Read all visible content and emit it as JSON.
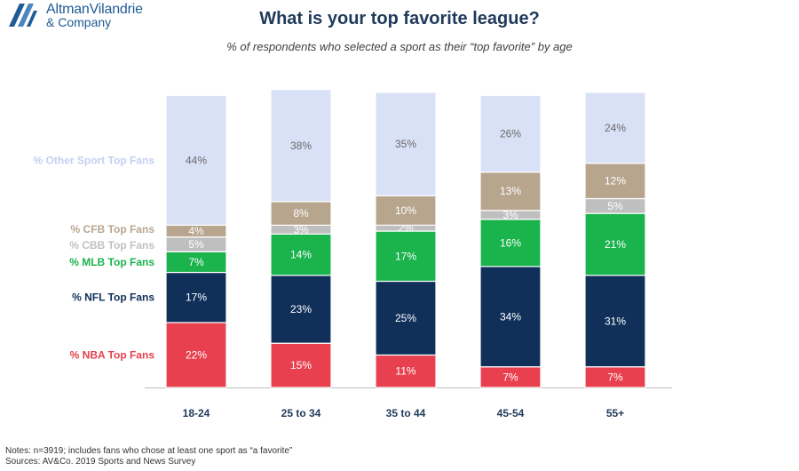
{
  "logo": {
    "line1": "AltmanVilandrie",
    "line2": "& Company"
  },
  "chart_data": {
    "type": "bar",
    "stacked": true,
    "title": "What is your top favorite league?",
    "subtitle": "% of respondents who selected a sport as their “top favorite” by age",
    "categories": [
      "18-24",
      "25 to 34",
      "35 to 44",
      "45-54",
      "55+"
    ],
    "series": [
      {
        "name": "% NBA Top Fans",
        "color": "#e8404f",
        "text_color": "#ffffff",
        "label_color": "#e8404f",
        "values": [
          22,
          15,
          11,
          7,
          7
        ]
      },
      {
        "name": "% NFL Top Fans",
        "color": "#10305a",
        "text_color": "#ffffff",
        "label_color": "#10305a",
        "values": [
          17,
          23,
          25,
          34,
          31
        ]
      },
      {
        "name": "% MLB Top Fans",
        "color": "#1ab34c",
        "text_color": "#ffffff",
        "label_color": "#1ab34c",
        "values": [
          7,
          14,
          17,
          16,
          21
        ]
      },
      {
        "name": "% CBB Top Fans",
        "color": "#bfbfbf",
        "text_color": "#ffffff",
        "label_color": "#c0c0c0",
        "values": [
          5,
          3,
          2,
          3,
          5
        ]
      },
      {
        "name": "% CFB Top Fans",
        "color": "#b8a58e",
        "text_color": "#ffffff",
        "label_color": "#b8a58e",
        "values": [
          4,
          8,
          10,
          13,
          12
        ]
      },
      {
        "name": "% Other Sport Top Fans",
        "color": "#d9e1f7",
        "text_color": "#6a6a6a",
        "label_color": "#c5cff0",
        "values": [
          44,
          38,
          35,
          26,
          24
        ]
      }
    ],
    "value_suffix": "%",
    "ylim": [
      0,
      100
    ],
    "grid": false,
    "legend": "left"
  },
  "notes": {
    "line1": "Notes: n=3919; includes fans who chose at least one sport as “a favorite”",
    "line2": "Sources: AV&Co. 2019 Sports and News Survey"
  }
}
